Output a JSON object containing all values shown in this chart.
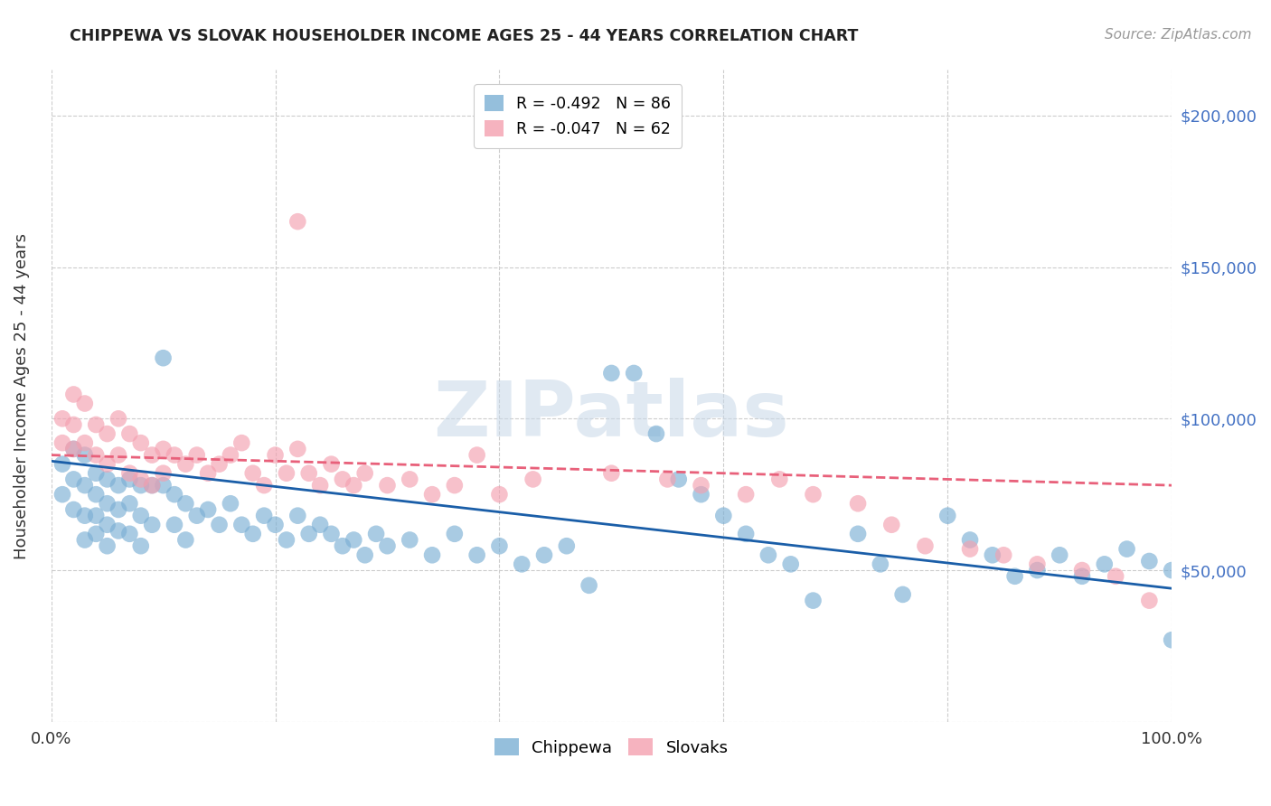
{
  "title": "CHIPPEWA VS SLOVAK HOUSEHOLDER INCOME AGES 25 - 44 YEARS CORRELATION CHART",
  "source": "Source: ZipAtlas.com",
  "ylabel": "Householder Income Ages 25 - 44 years",
  "ylim": [
    0,
    215000
  ],
  "xlim": [
    0,
    1.0
  ],
  "yticks": [
    0,
    50000,
    100000,
    150000,
    200000
  ],
  "xticks": [
    0.0,
    0.2,
    0.4,
    0.6,
    0.8,
    1.0
  ],
  "legend_r1": "R = -0.492   N = 86",
  "legend_r2": "R = -0.047   N = 62",
  "chippewa_color": "#7bafd4",
  "slovak_color": "#f4a0b0",
  "trend_chippewa_color": "#1a5ea8",
  "trend_slovak_color": "#e8607a",
  "watermark": "ZIPatlas",
  "chippewa_x": [
    0.01,
    0.01,
    0.02,
    0.02,
    0.02,
    0.03,
    0.03,
    0.03,
    0.03,
    0.04,
    0.04,
    0.04,
    0.04,
    0.05,
    0.05,
    0.05,
    0.05,
    0.06,
    0.06,
    0.06,
    0.07,
    0.07,
    0.07,
    0.08,
    0.08,
    0.08,
    0.09,
    0.09,
    0.1,
    0.1,
    0.11,
    0.11,
    0.12,
    0.12,
    0.13,
    0.14,
    0.15,
    0.16,
    0.17,
    0.18,
    0.19,
    0.2,
    0.21,
    0.22,
    0.23,
    0.24,
    0.25,
    0.26,
    0.27,
    0.28,
    0.29,
    0.3,
    0.32,
    0.34,
    0.36,
    0.38,
    0.4,
    0.42,
    0.44,
    0.46,
    0.48,
    0.5,
    0.52,
    0.54,
    0.56,
    0.58,
    0.6,
    0.62,
    0.64,
    0.66,
    0.68,
    0.72,
    0.74,
    0.76,
    0.8,
    0.82,
    0.84,
    0.86,
    0.88,
    0.9,
    0.92,
    0.94,
    0.96,
    0.98,
    1.0,
    1.0
  ],
  "chippewa_y": [
    85000,
    75000,
    90000,
    80000,
    70000,
    88000,
    78000,
    68000,
    60000,
    82000,
    75000,
    68000,
    62000,
    80000,
    72000,
    65000,
    58000,
    78000,
    70000,
    63000,
    80000,
    72000,
    62000,
    78000,
    68000,
    58000,
    78000,
    65000,
    120000,
    78000,
    75000,
    65000,
    72000,
    60000,
    68000,
    70000,
    65000,
    72000,
    65000,
    62000,
    68000,
    65000,
    60000,
    68000,
    62000,
    65000,
    62000,
    58000,
    60000,
    55000,
    62000,
    58000,
    60000,
    55000,
    62000,
    55000,
    58000,
    52000,
    55000,
    58000,
    45000,
    115000,
    115000,
    95000,
    80000,
    75000,
    68000,
    62000,
    55000,
    52000,
    40000,
    62000,
    52000,
    42000,
    68000,
    60000,
    55000,
    48000,
    50000,
    55000,
    48000,
    52000,
    57000,
    53000,
    50000,
    27000
  ],
  "slovak_x": [
    0.01,
    0.01,
    0.02,
    0.02,
    0.02,
    0.03,
    0.03,
    0.04,
    0.04,
    0.05,
    0.05,
    0.06,
    0.06,
    0.07,
    0.07,
    0.08,
    0.08,
    0.09,
    0.09,
    0.1,
    0.1,
    0.11,
    0.12,
    0.13,
    0.14,
    0.15,
    0.16,
    0.17,
    0.18,
    0.19,
    0.2,
    0.21,
    0.22,
    0.23,
    0.24,
    0.25,
    0.26,
    0.27,
    0.28,
    0.3,
    0.32,
    0.34,
    0.22,
    0.36,
    0.38,
    0.4,
    0.43,
    0.5,
    0.55,
    0.58,
    0.62,
    0.65,
    0.68,
    0.72,
    0.75,
    0.78,
    0.82,
    0.85,
    0.88,
    0.92,
    0.95,
    0.98
  ],
  "slovak_y": [
    100000,
    92000,
    108000,
    98000,
    90000,
    105000,
    92000,
    98000,
    88000,
    95000,
    85000,
    100000,
    88000,
    95000,
    82000,
    92000,
    80000,
    88000,
    78000,
    90000,
    82000,
    88000,
    85000,
    88000,
    82000,
    85000,
    88000,
    92000,
    82000,
    78000,
    88000,
    82000,
    165000,
    82000,
    78000,
    85000,
    80000,
    78000,
    82000,
    78000,
    80000,
    75000,
    90000,
    78000,
    88000,
    75000,
    80000,
    82000,
    80000,
    78000,
    75000,
    80000,
    75000,
    72000,
    65000,
    58000,
    57000,
    55000,
    52000,
    50000,
    48000,
    40000
  ],
  "chip_trend_x": [
    0.0,
    1.0
  ],
  "chip_trend_y": [
    86000,
    44000
  ],
  "slov_trend_x": [
    0.0,
    1.0
  ],
  "slov_trend_y": [
    88000,
    78000
  ]
}
